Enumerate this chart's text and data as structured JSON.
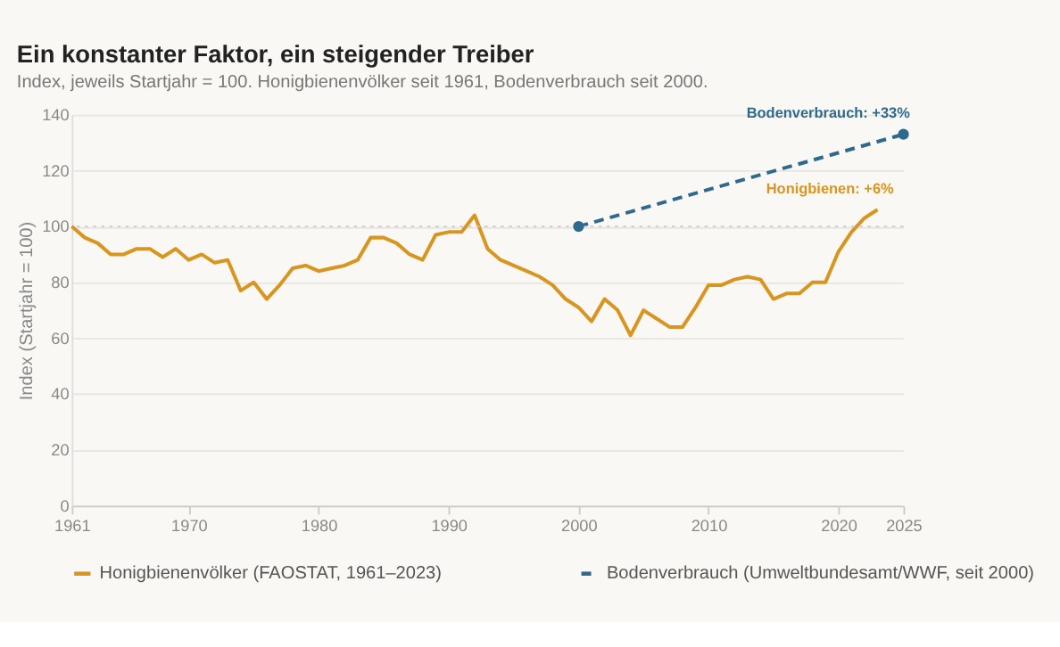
{
  "chart_data": {
    "type": "line",
    "title": "Ein konstanter Faktor, ein steigender Treiber",
    "subtitle": "Index, jeweils Startjahr = 100. Honigbienenvölker seit 1961, Bodenverbrauch seit 2000.",
    "ylabel": "Index (Startjahr = 100)",
    "series": [
      {
        "name": "Honigbienenvölker (FAOSTAT, 1961–2023)",
        "color": "#d8951f",
        "line_style": "solid",
        "marker": "none",
        "x": [
          1961,
          1962,
          1963,
          1964,
          1965,
          1966,
          1967,
          1968,
          1969,
          1970,
          1971,
          1972,
          1973,
          1974,
          1975,
          1976,
          1977,
          1978,
          1979,
          1980,
          1981,
          1982,
          1983,
          1984,
          1985,
          1986,
          1987,
          1988,
          1989,
          1990,
          1991,
          1992,
          1993,
          1994,
          1995,
          1996,
          1997,
          1998,
          1999,
          2000,
          2001,
          2002,
          2003,
          2004,
          2005,
          2006,
          2007,
          2008,
          2009,
          2010,
          2011,
          2012,
          2013,
          2014,
          2015,
          2016,
          2017,
          2018,
          2019,
          2020,
          2021,
          2022,
          2023
        ],
        "values": [
          100,
          96,
          94,
          90,
          90,
          92,
          92,
          89,
          92,
          88,
          90,
          87,
          88,
          77,
          80,
          74,
          79,
          85,
          86,
          84,
          85,
          86,
          88,
          96,
          96,
          94,
          90,
          88,
          97,
          98,
          98,
          104,
          92,
          88,
          86,
          84,
          82,
          79,
          74,
          71,
          66,
          74,
          70,
          61,
          70,
          67,
          64,
          64,
          71,
          79,
          79,
          81,
          82,
          81,
          74,
          76,
          76,
          80,
          80,
          91,
          98,
          103,
          106
        ]
      },
      {
        "name": "Bodenverbrauch (Umweltbundesamt/WWF, seit 2000)",
        "color": "#2d6a8e",
        "line_style": "dashed",
        "marker": "circle",
        "x": [
          2000,
          2025
        ],
        "values": [
          100,
          133
        ]
      }
    ],
    "annotations": [
      {
        "text": "Bodenverbrauch: +33%",
        "x": 2025,
        "y": 133
      },
      {
        "text": "Honigbienen: +6%",
        "x": 2023,
        "y": 106
      }
    ],
    "ref_lines": [
      {
        "axis": "y",
        "value": 100,
        "color": "#cccccc",
        "line_style": "dotted"
      }
    ],
    "xlim": [
      1961,
      2025
    ],
    "xticks": [
      1961,
      1970,
      1980,
      1990,
      2000,
      2010,
      2020,
      2025
    ],
    "ylim": [
      0,
      140
    ],
    "yticks": [
      0,
      20,
      40,
      60,
      80,
      100,
      120,
      140
    ],
    "grid": "y",
    "legend": "bottom"
  }
}
